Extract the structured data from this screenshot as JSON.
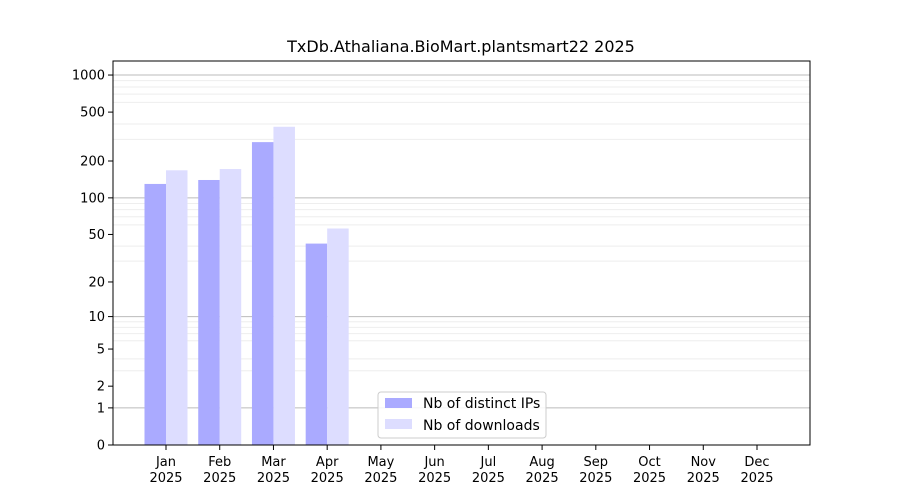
{
  "chart_data": {
    "type": "bar",
    "title": "TxDb.Athaliana.BioMart.plantsmart22 2025",
    "xlabel": "",
    "ylabel": "",
    "y_scale": "symlog",
    "ylim": [
      0,
      1300
    ],
    "y_ticks": [
      0,
      1,
      2,
      5,
      10,
      20,
      50,
      100,
      200,
      500,
      1000
    ],
    "y_tick_labels": [
      "0",
      "1",
      "2",
      "5",
      "10",
      "20",
      "50",
      "100",
      "200",
      "500",
      "1000"
    ],
    "categories": [
      "Jan\n2025",
      "Feb\n2025",
      "Mar\n2025",
      "Apr\n2025",
      "May\n2025",
      "Jun\n2025",
      "Jul\n2025",
      "Aug\n2025",
      "Sep\n2025",
      "Oct\n2025",
      "Nov\n2025",
      "Dec\n2025"
    ],
    "category_month": [
      "Jan",
      "Feb",
      "Mar",
      "Apr",
      "May",
      "Jun",
      "Jul",
      "Aug",
      "Sep",
      "Oct",
      "Nov",
      "Dec"
    ],
    "category_year": [
      "2025",
      "2025",
      "2025",
      "2025",
      "2025",
      "2025",
      "2025",
      "2025",
      "2025",
      "2025",
      "2025",
      "2025"
    ],
    "series": [
      {
        "name": "Nb of distinct IPs",
        "color": "#aaaaff",
        "values": [
          130,
          140,
          285,
          42,
          0,
          0,
          0,
          0,
          0,
          0,
          0,
          0
        ]
      },
      {
        "name": "Nb of downloads",
        "color": "#ddddff",
        "values": [
          168,
          172,
          380,
          56,
          0,
          0,
          0,
          0,
          0,
          0,
          0,
          0
        ]
      }
    ],
    "grid": true,
    "legend_position": "lower-center"
  }
}
